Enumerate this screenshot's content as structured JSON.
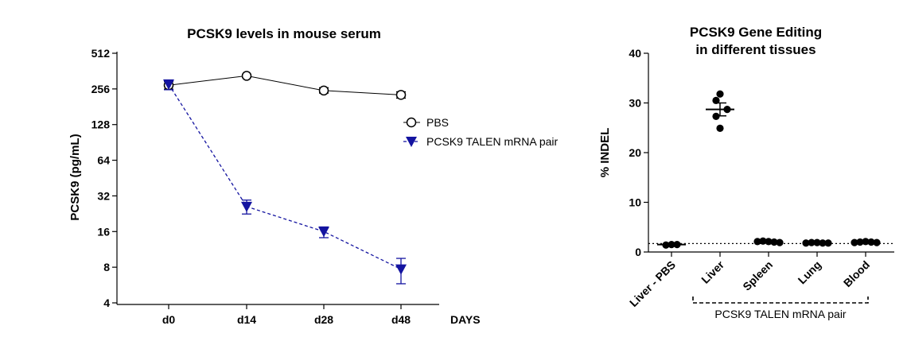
{
  "chart_data": [
    {
      "type": "line",
      "title": "PCSK9 levels in mouse serum",
      "xlabel": "DAYS",
      "ylabel": "PCSK9 (pg/mL)",
      "y_scale": "log2",
      "ylim": [
        4,
        512
      ],
      "y_ticks": [
        "4",
        "8",
        "16",
        "32",
        "64",
        "128",
        "256",
        "512"
      ],
      "y_tick_values": [
        4,
        8,
        16,
        32,
        64,
        128,
        256,
        512
      ],
      "categories": [
        "d0",
        "d14",
        "d28",
        "d48"
      ],
      "legend_position": "right",
      "series": [
        {
          "name": "PBS",
          "marker": "open-circle",
          "line": "solid",
          "color": "#000000",
          "values": [
            275,
            330,
            248,
            228
          ],
          "err_low": [
            255,
            322,
            236,
            214
          ],
          "err_high": [
            295,
            338,
            262,
            242
          ]
        },
        {
          "name": "PCSK9 TALEN mRNA pair",
          "marker": "filled-triangle-down",
          "line": "dashed",
          "color": "#1414a0",
          "values": [
            280,
            26,
            16,
            7.7
          ],
          "err_low": [
            252,
            22.5,
            14.2,
            5.8
          ],
          "err_high": [
            305,
            29.5,
            17.5,
            9.5
          ]
        }
      ]
    },
    {
      "type": "scatter",
      "title_lines": [
        "PCSK9 Gene Editing",
        "in different tissues"
      ],
      "xlabel": "",
      "ylabel": "% INDEL",
      "ylim": [
        0,
        40
      ],
      "y_ticks": [
        0,
        10,
        20,
        30,
        40
      ],
      "categories": [
        "Liver - PBS",
        "Liver",
        "Spleen",
        "Lung",
        "Blood"
      ],
      "group_label": "PCSK9 TALEN mRNA pair",
      "baseline": 1.7,
      "color": "#000000",
      "points": [
        [
          1.4,
          1.5,
          1.5
        ],
        [
          31.8,
          30.5,
          28.7,
          27.3,
          24.9
        ],
        [
          2.1,
          2.2,
          2.1,
          2.0,
          1.9
        ],
        [
          1.8,
          1.9,
          1.9,
          1.8,
          1.8
        ],
        [
          1.9,
          2.0,
          2.1,
          2.0,
          1.9
        ]
      ],
      "means": [
        1.5,
        28.7,
        2.1,
        1.85,
        2.0
      ],
      "err": [
        0.1,
        1.3,
        0.1,
        0.05,
        0.1
      ]
    }
  ]
}
